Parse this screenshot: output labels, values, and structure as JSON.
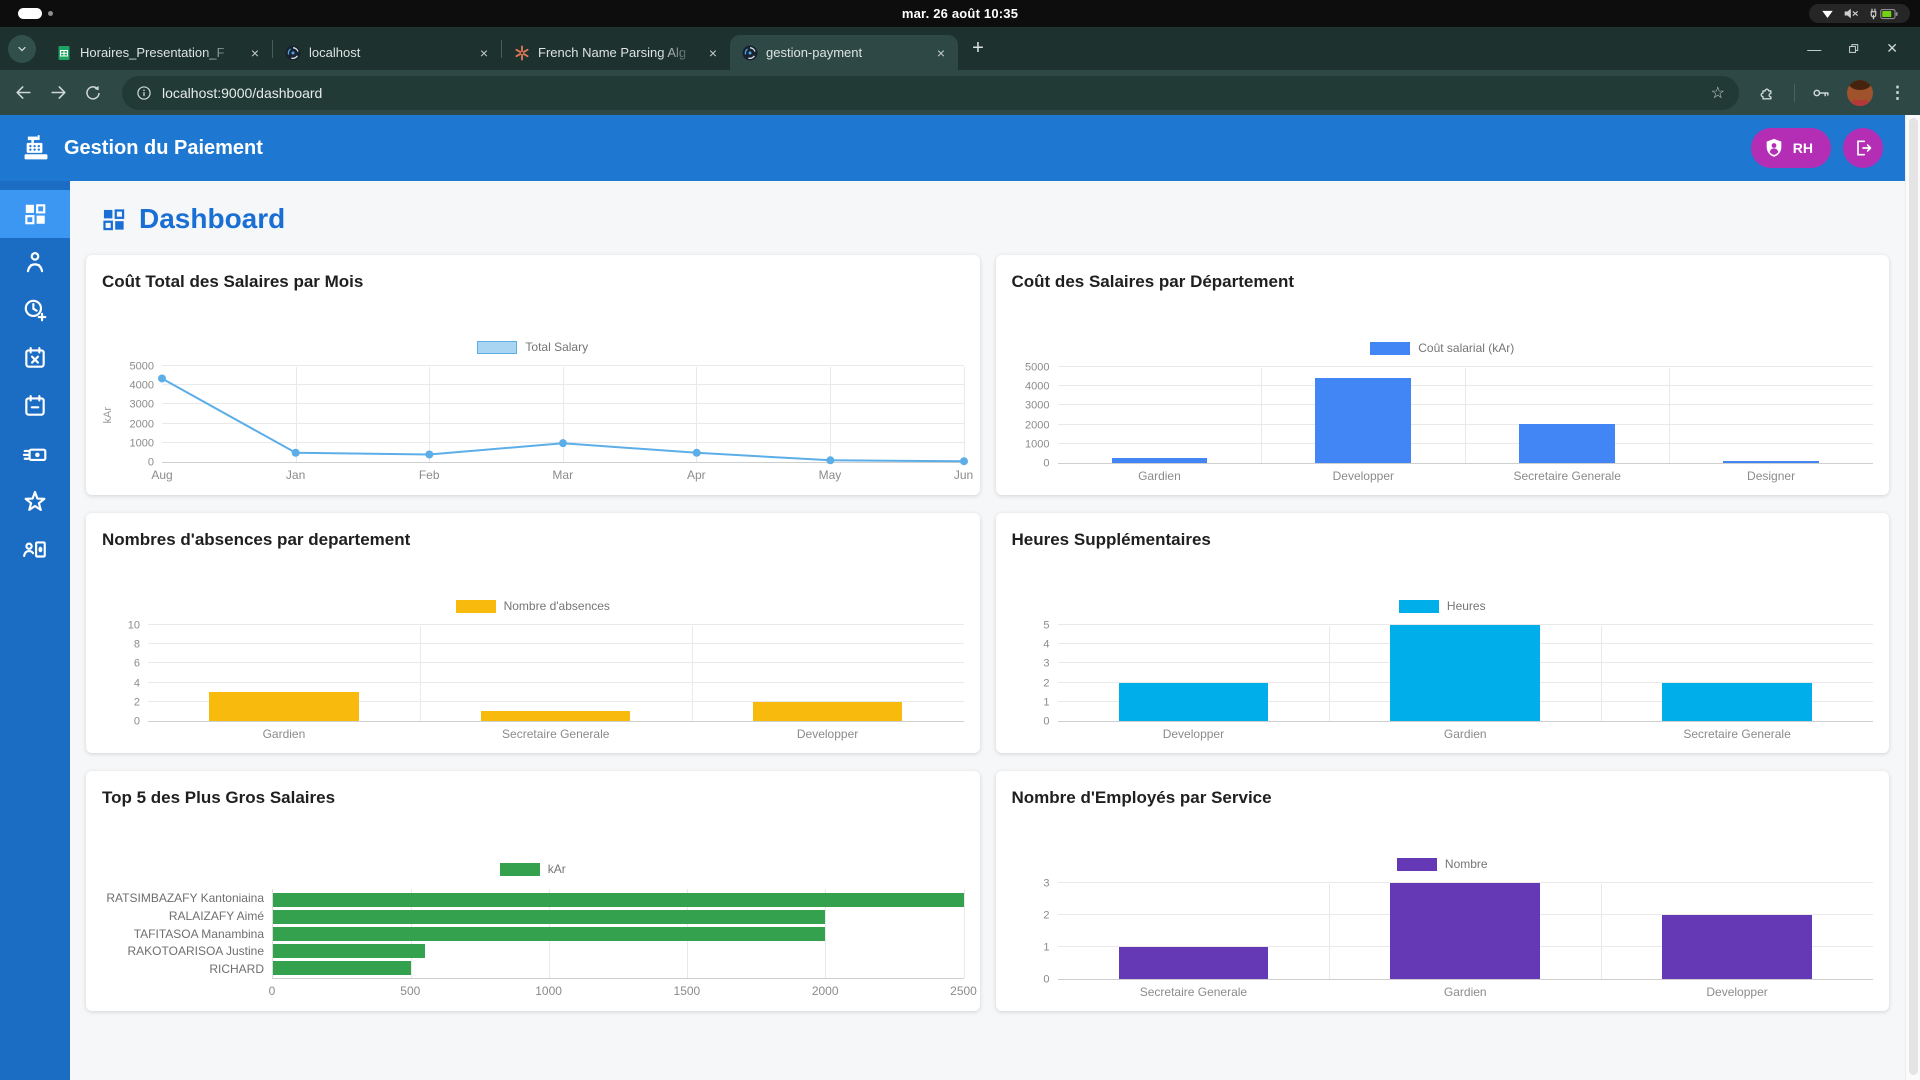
{
  "theme": {
    "header_blue": "#1e78d2",
    "sidebar_blue": "#1a6dc2",
    "sidebar_active_blue": "#3c97f3",
    "badge_magenta": "#b32db5",
    "page_title_blue": "#1a6fd4"
  },
  "system_bar": {
    "time": "mar. 26 août 10:35"
  },
  "browser": {
    "tabs": [
      {
        "title": "Horaires_Presentation_F",
        "icon": "google-sheets-icon",
        "active": false
      },
      {
        "title": "localhost",
        "icon": "app-favicon",
        "active": false
      },
      {
        "title": "French Name Parsing Alg",
        "icon": "claude-asterisk-icon",
        "active": false
      },
      {
        "title": "gestion-payment",
        "icon": "app-favicon",
        "active": true
      }
    ],
    "url": "localhost:9000/dashboard"
  },
  "app_header": {
    "title": "Gestion du Paiement",
    "user_badge": "RH"
  },
  "sidebar": {
    "items": [
      {
        "icon": "dashboard-grid-icon",
        "active": true
      },
      {
        "icon": "employee-person-icon",
        "active": false
      },
      {
        "icon": "clock-add-icon",
        "active": false
      },
      {
        "icon": "calendar-cancel-icon",
        "active": false
      },
      {
        "icon": "calendar-minus-icon",
        "active": false
      },
      {
        "icon": "payments-cash-icon",
        "active": false
      },
      {
        "icon": "star-icon",
        "active": false
      },
      {
        "icon": "payroll-person-icon",
        "active": false
      }
    ]
  },
  "page": {
    "title": "Dashboard"
  },
  "chart_data": [
    {
      "type": "line",
      "title": "Coût Total des Salaires par Mois",
      "legend": "Total Salary",
      "ylabel": "kAr",
      "categories": [
        "Aug",
        "Jan",
        "Feb",
        "Mar",
        "Apr",
        "May",
        "Jun"
      ],
      "values": [
        4350,
        480,
        390,
        980,
        480,
        90,
        40
      ],
      "ylim": [
        0,
        5000
      ],
      "yticks": [
        0,
        1000,
        2000,
        3000,
        4000,
        5000
      ],
      "color": "#5caee8",
      "legend_fill": "#a9d4f2",
      "grid": true,
      "legend_position": "top"
    },
    {
      "type": "bar",
      "title": "Coût des Salaires par Département",
      "legend": "Coût salarial (kAr)",
      "categories": [
        "Gardien",
        "Developper",
        "Secretaire Generale",
        "Designer"
      ],
      "values": [
        250,
        4450,
        2020,
        70
      ],
      "ylim": [
        0,
        5000
      ],
      "yticks": [
        0,
        1000,
        2000,
        3000,
        4000,
        5000
      ],
      "color": "#4285f4",
      "grid": true,
      "legend_position": "top"
    },
    {
      "type": "bar",
      "title": "Nombres d'absences par departement",
      "legend": "Nombre d'absences",
      "categories": [
        "Gardien",
        "Secretaire Generale",
        "Developper"
      ],
      "values": [
        3,
        1,
        2
      ],
      "ylim": [
        0,
        10
      ],
      "yticks": [
        0,
        2,
        4,
        6,
        8,
        10
      ],
      "color": "#f8ba0d",
      "grid": true,
      "legend_position": "top"
    },
    {
      "type": "bar",
      "title": "Heures Supplémentaires",
      "legend": "Heures",
      "categories": [
        "Developper",
        "Gardien",
        "Secretaire Generale"
      ],
      "values": [
        2,
        5,
        2
      ],
      "ylim": [
        0,
        5
      ],
      "yticks": [
        0,
        1,
        2,
        3,
        4,
        5
      ],
      "color": "#00aeea",
      "grid": true,
      "legend_position": "top"
    },
    {
      "type": "bar",
      "orientation": "horizontal",
      "title": "Top 5 des Plus Gros Salaires",
      "legend": "kAr",
      "categories": [
        "RATSIMBAZAFY Kantoniaina",
        "RALAIZAFY Aimé",
        "TAFITASOA Manambina",
        "RAKOTOARISOA Justine",
        "RICHARD"
      ],
      "values": [
        2500,
        2000,
        2000,
        550,
        500
      ],
      "xlim": [
        0,
        2500
      ],
      "xticks": [
        0,
        500,
        1000,
        1500,
        2000,
        2500
      ],
      "color": "#34a14e",
      "grid": true,
      "legend_position": "top"
    },
    {
      "type": "bar",
      "title": "Nombre d'Employés par Service",
      "legend": "Nombre",
      "categories": [
        "Secretaire Generale",
        "Gardien",
        "Developper"
      ],
      "values": [
        1,
        3,
        2
      ],
      "ylim": [
        0,
        3
      ],
      "yticks": [
        0,
        1,
        2,
        3
      ],
      "color": "#6539b5",
      "grid": true,
      "legend_position": "top"
    }
  ]
}
